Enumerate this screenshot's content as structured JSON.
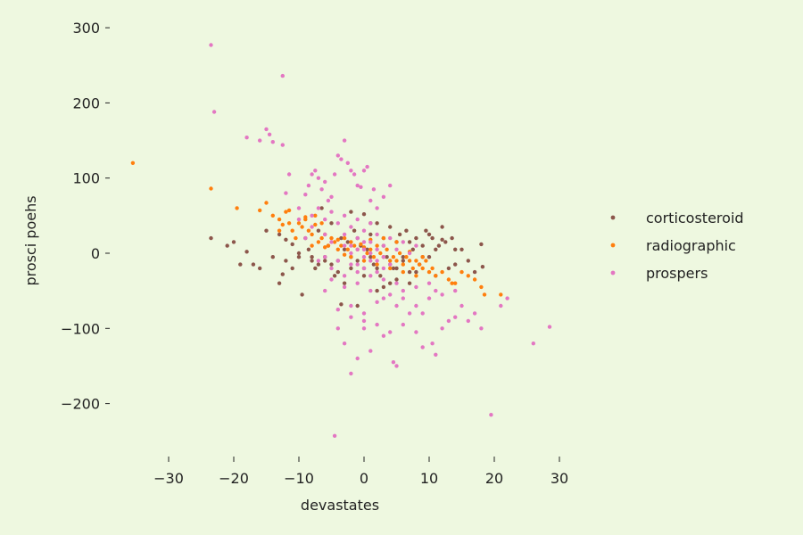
{
  "chart_data": {
    "type": "scatter",
    "title": "",
    "xlabel": "devastates",
    "ylabel": "prosci poehs",
    "xlim": [
      -38,
      36
    ],
    "ylim": [
      -255,
      305
    ],
    "xticks": [
      -30,
      -20,
      -10,
      0,
      10,
      20,
      30
    ],
    "yticks": [
      -200,
      -100,
      0,
      100,
      200,
      300
    ],
    "grid": false,
    "legend_position": "center-right",
    "series": [
      {
        "name": "corticosteroid",
        "color": "#8c564b",
        "points": [
          [
            -23.5,
            20
          ],
          [
            -21,
            10
          ],
          [
            -20,
            15
          ],
          [
            -19,
            -15
          ],
          [
            -18,
            2
          ],
          [
            -17,
            -15
          ],
          [
            -16,
            -20
          ],
          [
            -15,
            30
          ],
          [
            -13,
            -40
          ],
          [
            -12.5,
            -28
          ],
          [
            -13,
            25
          ],
          [
            -12,
            18
          ],
          [
            -11,
            12
          ],
          [
            -10,
            -5
          ],
          [
            -9.5,
            -55
          ],
          [
            -9,
            20
          ],
          [
            -8.5,
            5
          ],
          [
            -8,
            -10
          ],
          [
            -7.5,
            -20
          ],
          [
            -7,
            30
          ],
          [
            -6.5,
            60
          ],
          [
            -6,
            -5
          ],
          [
            -5.5,
            10
          ],
          [
            -5,
            -15
          ],
          [
            -4.5,
            -30
          ],
          [
            -4,
            -25
          ],
          [
            -3.5,
            20
          ],
          [
            -3,
            -40
          ],
          [
            -2.5,
            15
          ],
          [
            -2,
            -5
          ],
          [
            -1.5,
            30
          ],
          [
            -1,
            -10
          ],
          [
            -0.5,
            10
          ],
          [
            0,
            -20
          ],
          [
            0.5,
            5
          ],
          [
            1,
            25
          ],
          [
            1.5,
            -15
          ],
          [
            2,
            40
          ],
          [
            2.5,
            -30
          ],
          [
            3,
            10
          ],
          [
            3.5,
            -5
          ],
          [
            4,
            35
          ],
          [
            4.5,
            -20
          ],
          [
            5,
            15
          ],
          [
            5.5,
            25
          ],
          [
            6,
            -10
          ],
          [
            6.5,
            30
          ],
          [
            7,
            -25
          ],
          [
            7.5,
            5
          ],
          [
            8,
            20
          ],
          [
            8.5,
            -15
          ],
          [
            9,
            10
          ],
          [
            9.5,
            30
          ],
          [
            10,
            -5
          ],
          [
            10.5,
            20
          ],
          [
            11,
            -30
          ],
          [
            11.5,
            10
          ],
          [
            12,
            35
          ],
          [
            12.5,
            15
          ],
          [
            13,
            -20
          ],
          [
            13.5,
            20
          ],
          [
            14,
            -15
          ],
          [
            15,
            5
          ],
          [
            16,
            -10
          ],
          [
            17,
            -25
          ],
          [
            18,
            12
          ],
          [
            18.2,
            -18
          ],
          [
            -3.5,
            -68
          ],
          [
            -1,
            -70
          ],
          [
            2,
            -50
          ],
          [
            4,
            -40
          ],
          [
            -6,
            -10
          ],
          [
            -8,
            -5
          ],
          [
            -10,
            0
          ],
          [
            -11,
            -20
          ],
          [
            -12,
            -10
          ],
          [
            -14,
            -5
          ],
          [
            -2,
            55
          ],
          [
            0,
            52
          ],
          [
            1,
            40
          ],
          [
            3,
            -45
          ],
          [
            5,
            -35
          ],
          [
            7,
            -40
          ],
          [
            -5,
            40
          ],
          [
            -7,
            -15
          ],
          [
            -4,
            -10
          ],
          [
            -2,
            -20
          ],
          [
            0,
            -30
          ],
          [
            2,
            -20
          ],
          [
            4,
            -15
          ],
          [
            6,
            -5
          ],
          [
            8,
            -25
          ],
          [
            10,
            25
          ],
          [
            12,
            18
          ],
          [
            14,
            5
          ],
          [
            -3,
            5
          ],
          [
            -1,
            20
          ],
          [
            1,
            -5
          ],
          [
            3,
            20
          ],
          [
            5,
            -20
          ],
          [
            7,
            15
          ],
          [
            9,
            -5
          ],
          [
            11,
            5
          ]
        ]
      },
      {
        "name": "radiographic",
        "color": "#ff7f0e",
        "points": [
          [
            -35.5,
            120
          ],
          [
            -23.5,
            86
          ],
          [
            -19.5,
            60
          ],
          [
            -16,
            57
          ],
          [
            -15,
            67
          ],
          [
            -14,
            50
          ],
          [
            -13,
            45
          ],
          [
            -12.5,
            38
          ],
          [
            -12,
            55
          ],
          [
            -11.5,
            40
          ],
          [
            -11,
            30
          ],
          [
            -10.5,
            20
          ],
          [
            -10,
            40
          ],
          [
            -9.5,
            35
          ],
          [
            -9,
            45
          ],
          [
            -8.5,
            30
          ],
          [
            -8,
            25
          ],
          [
            -7.5,
            38
          ],
          [
            -7,
            15
          ],
          [
            -6.5,
            20
          ],
          [
            -6,
            25
          ],
          [
            -5.5,
            10
          ],
          [
            -5,
            20
          ],
          [
            -4.5,
            15
          ],
          [
            -4,
            18
          ],
          [
            -3.5,
            10
          ],
          [
            -3,
            20
          ],
          [
            -2.5,
            5
          ],
          [
            -2,
            15
          ],
          [
            -1.5,
            10
          ],
          [
            -1,
            5
          ],
          [
            -0.5,
            12
          ],
          [
            0,
            8
          ],
          [
            0.5,
            0
          ],
          [
            1,
            5
          ],
          [
            1.5,
            -5
          ],
          [
            2,
            10
          ],
          [
            2.5,
            0
          ],
          [
            3,
            -5
          ],
          [
            3.5,
            5
          ],
          [
            4,
            -10
          ],
          [
            4.5,
            -5
          ],
          [
            5,
            -10
          ],
          [
            5.5,
            0
          ],
          [
            6,
            -15
          ],
          [
            6.5,
            -5
          ],
          [
            7,
            -10
          ],
          [
            7.5,
            -20
          ],
          [
            8,
            -10
          ],
          [
            8.5,
            -15
          ],
          [
            9,
            -20
          ],
          [
            9.5,
            -10
          ],
          [
            10,
            -25
          ],
          [
            10.5,
            -20
          ],
          [
            11,
            -30
          ],
          [
            12,
            -25
          ],
          [
            13,
            -35
          ],
          [
            13.5,
            -40
          ],
          [
            14,
            -40
          ],
          [
            15,
            -25
          ],
          [
            16,
            -30
          ],
          [
            17,
            -35
          ],
          [
            18,
            -45
          ],
          [
            18.5,
            -55
          ],
          [
            21,
            -55
          ],
          [
            -13,
            30
          ],
          [
            -9,
            48
          ],
          [
            -7.5,
            50
          ],
          [
            -6,
            8
          ],
          [
            -4,
            5
          ],
          [
            -2,
            -5
          ],
          [
            0,
            -10
          ],
          [
            2,
            -15
          ],
          [
            4,
            -20
          ],
          [
            6,
            -25
          ],
          [
            8,
            -30
          ],
          [
            -11.5,
            57
          ],
          [
            3,
            20
          ],
          [
            5,
            15
          ],
          [
            -8,
            10
          ],
          [
            -6.5,
            40
          ],
          [
            -3,
            -2
          ],
          [
            1,
            18
          ],
          [
            7,
            2
          ],
          [
            9,
            -5
          ]
        ]
      },
      {
        "name": "prospers",
        "color": "#e377c2",
        "points": [
          [
            -23.5,
            277
          ],
          [
            -23,
            188
          ],
          [
            -12.5,
            236
          ],
          [
            -18,
            154
          ],
          [
            -16,
            150
          ],
          [
            -15,
            165
          ],
          [
            -14.5,
            158
          ],
          [
            -14,
            148
          ],
          [
            -12.5,
            144
          ],
          [
            -11.5,
            105
          ],
          [
            -12,
            80
          ],
          [
            -9,
            78
          ],
          [
            -8.5,
            90
          ],
          [
            -8,
            105
          ],
          [
            -7.5,
            110
          ],
          [
            -7,
            100
          ],
          [
            -6.5,
            85
          ],
          [
            -6,
            95
          ],
          [
            -5.5,
            70
          ],
          [
            -5,
            75
          ],
          [
            -4.5,
            105
          ],
          [
            -4,
            130
          ],
          [
            -3.5,
            125
          ],
          [
            -3,
            150
          ],
          [
            -2.5,
            120
          ],
          [
            -2,
            110
          ],
          [
            -1.5,
            105
          ],
          [
            -1,
            90
          ],
          [
            -0.5,
            88
          ],
          [
            0,
            110
          ],
          [
            0.5,
            115
          ],
          [
            1,
            70
          ],
          [
            1.5,
            85
          ],
          [
            2,
            60
          ],
          [
            3,
            75
          ],
          [
            4,
            90
          ],
          [
            -10,
            60
          ],
          [
            -8,
            50
          ],
          [
            -6,
            45
          ],
          [
            -4,
            40
          ],
          [
            -2,
            35
          ],
          [
            0,
            30
          ],
          [
            2,
            25
          ],
          [
            4,
            20
          ],
          [
            6,
            15
          ],
          [
            8,
            10
          ],
          [
            -9,
            20
          ],
          [
            -7,
            -10
          ],
          [
            -5,
            -20
          ],
          [
            -3,
            -30
          ],
          [
            -1,
            -40
          ],
          [
            1,
            -50
          ],
          [
            3,
            -60
          ],
          [
            5,
            -70
          ],
          [
            7,
            -80
          ],
          [
            -4,
            -100
          ],
          [
            -3,
            -120
          ],
          [
            -1,
            -140
          ],
          [
            -2,
            -160
          ],
          [
            1,
            -130
          ],
          [
            3,
            -110
          ],
          [
            5,
            -150
          ],
          [
            4.5,
            -145
          ],
          [
            9,
            -125
          ],
          [
            10.5,
            -120
          ],
          [
            11,
            -135
          ],
          [
            12,
            -100
          ],
          [
            13,
            -90
          ],
          [
            14,
            -85
          ],
          [
            15,
            -70
          ],
          [
            16,
            -90
          ],
          [
            17,
            -80
          ],
          [
            18,
            -100
          ],
          [
            19.5,
            -215
          ],
          [
            21,
            -70
          ],
          [
            22,
            -60
          ],
          [
            26,
            -120
          ],
          [
            28.5,
            -98
          ],
          [
            -4.5,
            -243
          ],
          [
            0,
            -90
          ],
          [
            0,
            -80
          ],
          [
            -2,
            -70
          ],
          [
            2,
            -65
          ],
          [
            4,
            -55
          ],
          [
            6,
            -50
          ],
          [
            8,
            -45
          ],
          [
            10,
            -40
          ],
          [
            12,
            -55
          ],
          [
            14,
            -50
          ],
          [
            -6,
            -5
          ],
          [
            -4,
            -10
          ],
          [
            -2,
            -15
          ],
          [
            0,
            -20
          ],
          [
            2,
            -25
          ],
          [
            -3,
            10
          ],
          [
            -1,
            5
          ],
          [
            1,
            0
          ],
          [
            3,
            -5
          ],
          [
            -5,
            15
          ],
          [
            -3,
            25
          ],
          [
            -1,
            20
          ],
          [
            1,
            15
          ],
          [
            3,
            10
          ],
          [
            5,
            5
          ],
          [
            7,
            0
          ],
          [
            -2,
            0
          ],
          [
            0,
            -5
          ],
          [
            2,
            -10
          ],
          [
            4,
            -15
          ],
          [
            -1,
            -25
          ],
          [
            1,
            -30
          ],
          [
            3,
            -35
          ],
          [
            5,
            -40
          ],
          [
            6,
            -60
          ],
          [
            8,
            -70
          ],
          [
            9,
            -80
          ],
          [
            10,
            -60
          ],
          [
            11,
            -50
          ],
          [
            -6,
            25
          ],
          [
            -8,
            35
          ],
          [
            -10,
            45
          ],
          [
            -7,
            60
          ],
          [
            -5,
            55
          ],
          [
            -3,
            50
          ],
          [
            -1,
            45
          ],
          [
            1,
            40
          ],
          [
            0,
            15
          ],
          [
            0,
            5
          ],
          [
            1,
            -10
          ],
          [
            -1,
            -15
          ],
          [
            2,
            5
          ],
          [
            -2,
            10
          ],
          [
            3,
            -20
          ],
          [
            -3,
            -45
          ],
          [
            -5,
            -35
          ],
          [
            -6,
            -50
          ],
          [
            -4,
            -75
          ],
          [
            -2,
            -85
          ],
          [
            0,
            -100
          ],
          [
            2,
            -95
          ],
          [
            4,
            -105
          ],
          [
            6,
            -95
          ],
          [
            8,
            -105
          ]
        ]
      }
    ]
  }
}
